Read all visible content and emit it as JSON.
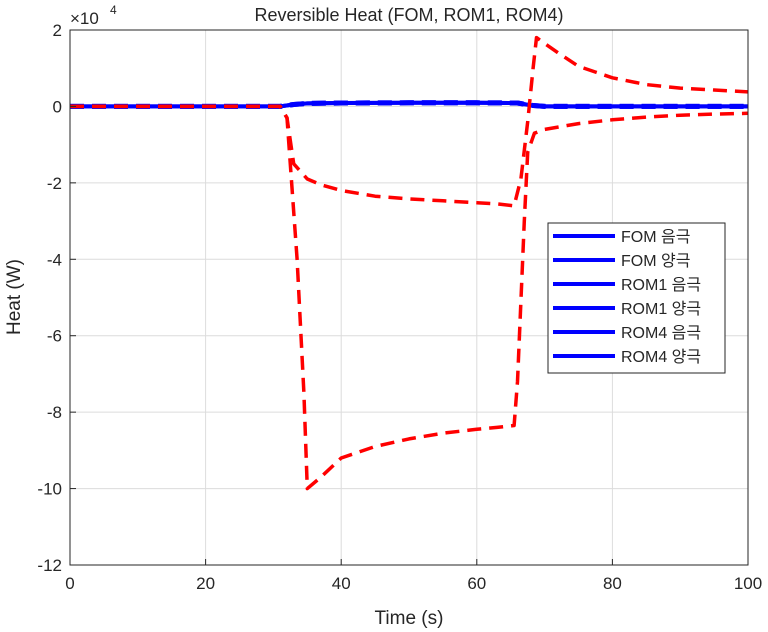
{
  "chart_data": {
    "type": "line",
    "title": "Reversible Heat (FOM, ROM1, ROM4)",
    "xlabel": "Time (s)",
    "ylabel": "Heat (W)",
    "y_multiplier_label": "×10",
    "y_multiplier_exp": "4",
    "xlim": [
      0,
      100
    ],
    "ylim": [
      -120000,
      20000
    ],
    "x_ticks": [
      0,
      20,
      40,
      60,
      80,
      100
    ],
    "x_tick_labels": [
      "0",
      "20",
      "40",
      "60",
      "80",
      "100"
    ],
    "y_ticks": [
      -120000,
      -100000,
      -80000,
      -60000,
      -40000,
      -20000,
      0,
      20000
    ],
    "y_tick_labels": [
      "-12",
      "-10",
      "-8",
      "-6",
      "-4",
      "-2",
      "0",
      "2"
    ],
    "grid": true,
    "legend_position": "right",
    "series": [
      {
        "name": "FOM 음극",
        "color": "#0000ff",
        "dash": "solid",
        "width": 4,
        "x": [
          0,
          31,
          33,
          35,
          40,
          50,
          60,
          66,
          68,
          70,
          100
        ],
        "y": [
          0,
          0,
          500,
          800,
          900,
          950,
          950,
          900,
          300,
          0,
          0
        ]
      },
      {
        "name": "FOM 양극",
        "color": "#0000ff",
        "dash": "solid",
        "width": 4,
        "x": [
          0,
          31,
          33,
          35,
          40,
          50,
          60,
          66,
          68,
          70,
          100
        ],
        "y": [
          0,
          0,
          500,
          800,
          900,
          950,
          950,
          900,
          300,
          0,
          0
        ]
      },
      {
        "name": "ROM1 음극",
        "color": "#0000ff",
        "dash": "dashed",
        "width": 5,
        "x": [
          0,
          31,
          33,
          35,
          40,
          50,
          60,
          66,
          68,
          70,
          100
        ],
        "y": [
          0,
          0,
          500,
          800,
          900,
          950,
          950,
          900,
          300,
          0,
          0
        ]
      },
      {
        "name": "ROM1 양극",
        "color": "#0000ff",
        "dash": "dashed",
        "width": 5,
        "x": [
          0,
          31,
          33,
          35,
          40,
          50,
          60,
          66,
          68,
          70,
          100
        ],
        "y": [
          0,
          0,
          500,
          800,
          900,
          950,
          950,
          900,
          300,
          0,
          0
        ]
      },
      {
        "name": "ROM4 음극",
        "color": "#ff0000",
        "dash": "dashed",
        "width": 3.5,
        "x": [
          0,
          31,
          32,
          33.5,
          34.5,
          35,
          37,
          40,
          45,
          50,
          55,
          60,
          63,
          65.5,
          66,
          67,
          67.5,
          68.5,
          70,
          75,
          80,
          85,
          90,
          95,
          100
        ],
        "y": [
          0,
          0,
          -3000,
          -40000,
          -75000,
          -100000,
          -97000,
          -92000,
          -89000,
          -87000,
          -85500,
          -84500,
          -84000,
          -83500,
          -72000,
          -30000,
          -12000,
          -7000,
          -6000,
          -4500,
          -3500,
          -2800,
          -2300,
          -2000,
          -1800
        ]
      },
      {
        "name": "ROM4 양극",
        "color": "#ff0000",
        "dash": "dashed",
        "width": 3.5,
        "x": [
          0,
          31,
          32,
          33,
          35,
          37,
          40,
          45,
          50,
          55,
          60,
          63,
          65.5,
          66.5,
          67.5,
          68.3,
          68.8,
          70,
          72,
          75,
          80,
          85,
          90,
          95,
          100
        ],
        "y": [
          0,
          0,
          -3000,
          -15000,
          -19000,
          -20500,
          -22000,
          -23500,
          -24200,
          -24700,
          -25200,
          -25500,
          -26000,
          -19000,
          -4000,
          10000,
          18000,
          16500,
          14000,
          10500,
          7500,
          5700,
          4800,
          4300,
          3800
        ]
      }
    ]
  }
}
